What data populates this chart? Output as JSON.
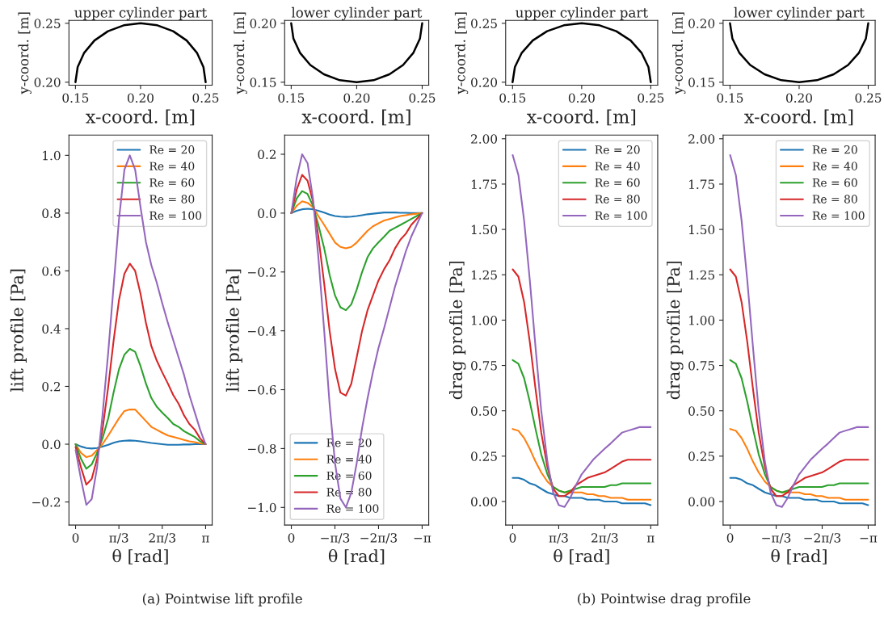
{
  "chart_data": [
    {
      "type": "line",
      "title": "upper cylinder part",
      "xlabel": "x-coord. [m]",
      "ylabel": "y-coord. [m]",
      "xlim": [
        0.145,
        0.255
      ],
      "ylim": [
        0.1975,
        0.2525
      ],
      "xticks": [
        0.15,
        {
          "value": 0.2,
          "label": "0.20"
        },
        0.25
      ],
      "yticks": [
        {
          "value": 0.2,
          "label": "0.20"
        },
        0.25
      ],
      "series": [
        {
          "color": "#000000",
          "x": [
            0.25,
            0.2483,
            0.2433,
            0.2354,
            0.225,
            0.2129,
            0.2,
            0.1871,
            0.175,
            0.1646,
            0.1567,
            0.1517,
            0.15
          ],
          "values": [
            0.2,
            0.2129,
            0.225,
            0.2354,
            0.2433,
            0.2483,
            0.25,
            0.2483,
            0.2433,
            0.2354,
            0.225,
            0.2129,
            0.2
          ]
        }
      ]
    },
    {
      "type": "line",
      "title": "lower cylinder part",
      "xlabel": "x-coord. [m]",
      "ylabel": "y-coord. [m]",
      "xlim": [
        0.145,
        0.255
      ],
      "ylim": [
        0.1475,
        0.2025
      ],
      "xticks": [
        0.15,
        {
          "value": 0.2,
          "label": "0.20"
        },
        0.25
      ],
      "yticks": [
        0.15,
        {
          "value": 0.2,
          "label": "0.20"
        }
      ],
      "series": [
        {
          "color": "#000000",
          "x": [
            0.25,
            0.2483,
            0.2433,
            0.2354,
            0.225,
            0.2129,
            0.2,
            0.1871,
            0.175,
            0.1646,
            0.1567,
            0.1517,
            0.15
          ],
          "values": [
            0.2,
            0.1871,
            0.175,
            0.1646,
            0.1567,
            0.1517,
            0.15,
            0.1517,
            0.1567,
            0.1646,
            0.175,
            0.1871,
            0.2
          ]
        }
      ]
    },
    {
      "type": "line",
      "title": "upper cylinder part",
      "xlabel": "x-coord. [m]",
      "ylabel": "y-coord. [m]",
      "xlim": [
        0.145,
        0.255
      ],
      "ylim": [
        0.1975,
        0.2525
      ],
      "xticks": [
        0.15,
        {
          "value": 0.2,
          "label": "0.20"
        },
        0.25
      ],
      "yticks": [
        {
          "value": 0.2,
          "label": "0.20"
        },
        0.25
      ],
      "series": [
        {
          "color": "#000000",
          "x": [
            0.25,
            0.2483,
            0.2433,
            0.2354,
            0.225,
            0.2129,
            0.2,
            0.1871,
            0.175,
            0.1646,
            0.1567,
            0.1517,
            0.15
          ],
          "values": [
            0.2,
            0.2129,
            0.225,
            0.2354,
            0.2433,
            0.2483,
            0.25,
            0.2483,
            0.2433,
            0.2354,
            0.225,
            0.2129,
            0.2
          ]
        }
      ]
    },
    {
      "type": "line",
      "title": "lower cylinder part",
      "xlabel": "x-coord. [m]",
      "ylabel": "y-coord. [m]",
      "xlim": [
        0.145,
        0.255
      ],
      "ylim": [
        0.1475,
        0.2025
      ],
      "xticks": [
        0.15,
        {
          "value": 0.2,
          "label": "0.20"
        },
        0.25
      ],
      "yticks": [
        0.15,
        {
          "value": 0.2,
          "label": "0.20"
        }
      ],
      "series": [
        {
          "color": "#000000",
          "x": [
            0.25,
            0.2483,
            0.2433,
            0.2354,
            0.225,
            0.2129,
            0.2,
            0.1871,
            0.175,
            0.1646,
            0.1567,
            0.1517,
            0.15
          ],
          "values": [
            0.2,
            0.1871,
            0.175,
            0.1646,
            0.1567,
            0.1517,
            0.15,
            0.1517,
            0.1567,
            0.1646,
            0.175,
            0.1871,
            0.2
          ]
        }
      ]
    },
    {
      "type": "line",
      "xlabel": "θ [rad]",
      "ylabel": "lift profile [Pa]",
      "legend": "top right",
      "annotations": [
        "(a) Pointwise lift profile"
      ],
      "xlim": [
        -0.16,
        3.3
      ],
      "ylim": [
        -0.28,
        1.07
      ],
      "xticks": [
        0,
        {
          "value": 1.0472,
          "label": "π/3"
        },
        {
          "value": 2.0944,
          "label": "2π/3"
        },
        {
          "value": 3.1416,
          "label": "π"
        }
      ],
      "yticks": [
        {
          "value": -0.2,
          "label": "−0.2"
        },
        {
          "value": 0,
          "label": "0.0"
        },
        0.2,
        0.4,
        0.6,
        0.8,
        {
          "value": 1,
          "label": "1.0"
        }
      ],
      "x": [
        0,
        0.13,
        0.26,
        0.39,
        0.52,
        0.65,
        0.79,
        0.92,
        1.05,
        1.18,
        1.31,
        1.44,
        1.57,
        1.7,
        1.83,
        1.96,
        2.09,
        2.23,
        2.36,
        2.49,
        2.62,
        2.75,
        2.88,
        3.01,
        3.14
      ],
      "series": [
        {
          "name": "Re = 20",
          "color": "#1f77b4",
          "values": [
            0,
            -0.008,
            -0.013,
            -0.015,
            -0.013,
            -0.008,
            -0.002,
            0.005,
            0.01,
            0.012,
            0.013,
            0.012,
            0.01,
            0.007,
            0.004,
            0.002,
            0,
            -0.002,
            -0.002,
            -0.002,
            -0.001,
            -0.001,
            0,
            0,
            0
          ]
        },
        {
          "name": "Re = 40",
          "color": "#ff7f0e",
          "values": [
            0,
            -0.03,
            -0.045,
            -0.04,
            -0.02,
            0,
            0.03,
            0.06,
            0.09,
            0.115,
            0.12,
            0.12,
            0.1,
            0.08,
            0.06,
            0.05,
            0.04,
            0.03,
            0.025,
            0.02,
            0.015,
            0.01,
            0.007,
            0.003,
            0
          ]
        },
        {
          "name": "Re = 60",
          "color": "#2ca02c",
          "values": [
            0,
            -0.05,
            -0.085,
            -0.07,
            -0.03,
            0.02,
            0.09,
            0.18,
            0.26,
            0.31,
            0.33,
            0.32,
            0.27,
            0.21,
            0.16,
            0.13,
            0.11,
            0.09,
            0.07,
            0.06,
            0.045,
            0.035,
            0.025,
            0.01,
            0
          ]
        },
        {
          "name": "Re = 80",
          "color": "#d62728",
          "values": [
            -0.01,
            -0.08,
            -0.14,
            -0.12,
            -0.05,
            0.05,
            0.2,
            0.36,
            0.5,
            0.59,
            0.625,
            0.6,
            0.52,
            0.42,
            0.34,
            0.29,
            0.25,
            0.21,
            0.17,
            0.14,
            0.1,
            0.07,
            0.05,
            0.02,
            0
          ]
        },
        {
          "name": "Re = 100",
          "color": "#9467bd",
          "values": [
            -0.02,
            -0.12,
            -0.21,
            -0.19,
            -0.08,
            0.1,
            0.32,
            0.55,
            0.78,
            0.95,
            1.0,
            0.95,
            0.82,
            0.7,
            0.62,
            0.56,
            0.49,
            0.42,
            0.36,
            0.3,
            0.24,
            0.17,
            0.11,
            0.05,
            0
          ]
        }
      ]
    },
    {
      "type": "line",
      "xlabel": "θ [rad]",
      "ylabel": "lift profile [Pa]",
      "legend": "bottom left",
      "xlim": [
        0.16,
        -3.3
      ],
      "ylim": [
        -1.06,
        0.265
      ],
      "xticks": [
        0,
        {
          "value": -1.0472,
          "label": "−π/3"
        },
        {
          "value": -2.0944,
          "label": "−2π/3"
        },
        {
          "value": -3.1416,
          "label": "−π"
        }
      ],
      "yticks": [
        {
          "value": -1.0,
          "label": "−1.0"
        },
        {
          "value": -0.8,
          "label": "−0.8"
        },
        {
          "value": -0.6,
          "label": "−0.6"
        },
        {
          "value": -0.4,
          "label": "−0.4"
        },
        {
          "value": -0.2,
          "label": "−0.2"
        },
        {
          "value": 0,
          "label": "0.0"
        },
        0.2
      ],
      "x": [
        0,
        -0.13,
        -0.26,
        -0.39,
        -0.52,
        -0.65,
        -0.79,
        -0.92,
        -1.05,
        -1.18,
        -1.31,
        -1.44,
        -1.57,
        -1.7,
        -1.83,
        -1.96,
        -2.09,
        -2.23,
        -2.36,
        -2.49,
        -2.62,
        -2.75,
        -2.88,
        -3.01,
        -3.14
      ],
      "series": [
        {
          "name": "Re = 20",
          "color": "#1f77b4",
          "values": [
            0,
            0.008,
            0.013,
            0.015,
            0.013,
            0.008,
            0.002,
            -0.005,
            -0.01,
            -0.012,
            -0.013,
            -0.012,
            -0.01,
            -0.007,
            -0.004,
            -0.002,
            0,
            0.002,
            0.002,
            0.002,
            0.001,
            0.001,
            0,
            0,
            0
          ]
        },
        {
          "name": "Re = 40",
          "color": "#ff7f0e",
          "values": [
            0,
            0.025,
            0.04,
            0.035,
            0.02,
            -0.01,
            -0.04,
            -0.07,
            -0.1,
            -0.115,
            -0.12,
            -0.115,
            -0.1,
            -0.08,
            -0.06,
            -0.045,
            -0.035,
            -0.025,
            -0.02,
            -0.015,
            -0.01,
            -0.007,
            -0.004,
            -0.002,
            0
          ]
        },
        {
          "name": "Re = 60",
          "color": "#2ca02c",
          "values": [
            0,
            0.05,
            0.075,
            0.065,
            0.025,
            -0.04,
            -0.12,
            -0.21,
            -0.28,
            -0.32,
            -0.33,
            -0.31,
            -0.26,
            -0.2,
            -0.15,
            -0.12,
            -0.1,
            -0.08,
            -0.06,
            -0.05,
            -0.04,
            -0.03,
            -0.02,
            -0.01,
            0
          ]
        },
        {
          "name": "Re = 80",
          "color": "#d62728",
          "values": [
            0,
            0.08,
            0.13,
            0.11,
            0.04,
            -0.08,
            -0.24,
            -0.4,
            -0.53,
            -0.61,
            -0.62,
            -0.58,
            -0.49,
            -0.4,
            -0.33,
            -0.28,
            -0.23,
            -0.19,
            -0.16,
            -0.12,
            -0.09,
            -0.07,
            -0.04,
            -0.02,
            0
          ]
        },
        {
          "name": "Re = 100",
          "color": "#9467bd",
          "values": [
            0,
            0.12,
            0.2,
            0.17,
            0.05,
            -0.15,
            -0.4,
            -0.65,
            -0.85,
            -0.97,
            -1.0,
            -0.95,
            -0.85,
            -0.73,
            -0.63,
            -0.54,
            -0.46,
            -0.39,
            -0.32,
            -0.25,
            -0.19,
            -0.13,
            -0.08,
            -0.04,
            0
          ]
        }
      ]
    },
    {
      "type": "line",
      "xlabel": "θ [rad]",
      "ylabel": "drag profile [Pa]",
      "legend": "top right",
      "annotations": [
        "(b) Pointwise drag profile"
      ],
      "xlim": [
        -0.16,
        3.3
      ],
      "ylim": [
        -0.13,
        2.02
      ],
      "xticks": [
        0,
        {
          "value": 1.0472,
          "label": "π/3"
        },
        {
          "value": 2.0944,
          "label": "2π/3"
        },
        {
          "value": 3.1416,
          "label": "π"
        }
      ],
      "yticks": [
        {
          "value": 0,
          "label": "0.00"
        },
        0.25,
        {
          "value": 0.5,
          "label": "0.50"
        },
        0.75,
        {
          "value": 1.0,
          "label": "1.00"
        },
        1.25,
        {
          "value": 1.5,
          "label": "1.50"
        },
        1.75,
        {
          "value": 2.0,
          "label": "2.00"
        }
      ],
      "x": [
        0,
        0.13,
        0.26,
        0.39,
        0.52,
        0.65,
        0.79,
        0.92,
        1.05,
        1.18,
        1.31,
        1.44,
        1.57,
        1.7,
        1.83,
        1.96,
        2.09,
        2.23,
        2.36,
        2.49,
        2.62,
        2.75,
        2.88,
        3.01,
        3.14
      ],
      "series": [
        {
          "name": "Re = 20",
          "color": "#1f77b4",
          "values": [
            0.13,
            0.13,
            0.12,
            0.1,
            0.09,
            0.07,
            0.05,
            0.04,
            0.03,
            0.03,
            0.02,
            0.02,
            0.02,
            0.01,
            0.01,
            0.01,
            0.0,
            0.0,
            0.0,
            -0.01,
            -0.01,
            -0.01,
            -0.01,
            -0.01,
            -0.02
          ]
        },
        {
          "name": "Re = 40",
          "color": "#ff7f0e",
          "values": [
            0.4,
            0.39,
            0.35,
            0.29,
            0.22,
            0.16,
            0.11,
            0.08,
            0.06,
            0.05,
            0.05,
            0.05,
            0.05,
            0.04,
            0.04,
            0.03,
            0.03,
            0.02,
            0.02,
            0.02,
            0.01,
            0.01,
            0.01,
            0.01,
            0.01
          ]
        },
        {
          "name": "Re = 60",
          "color": "#2ca02c",
          "values": [
            0.78,
            0.76,
            0.68,
            0.55,
            0.4,
            0.26,
            0.15,
            0.08,
            0.06,
            0.05,
            0.06,
            0.07,
            0.08,
            0.08,
            0.08,
            0.08,
            0.08,
            0.09,
            0.09,
            0.1,
            0.1,
            0.1,
            0.1,
            0.1,
            0.1
          ]
        },
        {
          "name": "Re = 80",
          "color": "#d62728",
          "values": [
            1.28,
            1.24,
            1.1,
            0.88,
            0.62,
            0.38,
            0.19,
            0.07,
            0.03,
            0.03,
            0.05,
            0.09,
            0.11,
            0.13,
            0.14,
            0.15,
            0.16,
            0.18,
            0.2,
            0.22,
            0.23,
            0.23,
            0.23,
            0.23,
            0.23
          ]
        },
        {
          "name": "Re = 100",
          "color": "#9467bd",
          "values": [
            1.91,
            1.8,
            1.55,
            1.22,
            0.85,
            0.5,
            0.22,
            0.05,
            -0.02,
            -0.03,
            0.02,
            0.09,
            0.15,
            0.19,
            0.23,
            0.26,
            0.29,
            0.32,
            0.35,
            0.38,
            0.39,
            0.4,
            0.41,
            0.41,
            0.41
          ]
        }
      ]
    },
    {
      "type": "line",
      "xlabel": "θ [rad]",
      "ylabel": "drag profile [Pa]",
      "legend": "top right",
      "xlim": [
        0.16,
        -3.3
      ],
      "ylim": [
        -0.13,
        2.02
      ],
      "xticks": [
        0,
        {
          "value": -1.0472,
          "label": "−π/3"
        },
        {
          "value": -2.0944,
          "label": "−2π/3"
        },
        {
          "value": -3.1416,
          "label": "−π"
        }
      ],
      "yticks": [
        {
          "value": 0,
          "label": "0.00"
        },
        0.25,
        {
          "value": 0.5,
          "label": "0.50"
        },
        0.75,
        {
          "value": 1.0,
          "label": "1.00"
        },
        1.25,
        {
          "value": 1.5,
          "label": "1.50"
        },
        1.75,
        {
          "value": 2.0,
          "label": "2.00"
        }
      ],
      "x": [
        0,
        -0.13,
        -0.26,
        -0.39,
        -0.52,
        -0.65,
        -0.79,
        -0.92,
        -1.05,
        -1.18,
        -1.31,
        -1.44,
        -1.57,
        -1.7,
        -1.83,
        -1.96,
        -2.09,
        -2.23,
        -2.36,
        -2.49,
        -2.62,
        -2.75,
        -2.88,
        -3.01,
        -3.14
      ],
      "series": [
        {
          "name": "Re = 20",
          "color": "#1f77b4",
          "values": [
            0.13,
            0.13,
            0.12,
            0.1,
            0.09,
            0.07,
            0.05,
            0.04,
            0.03,
            0.03,
            0.02,
            0.02,
            0.02,
            0.01,
            0.01,
            0.01,
            0.0,
            0.0,
            0.0,
            -0.01,
            -0.01,
            -0.01,
            -0.01,
            -0.01,
            -0.02
          ]
        },
        {
          "name": "Re = 40",
          "color": "#ff7f0e",
          "values": [
            0.4,
            0.39,
            0.35,
            0.29,
            0.22,
            0.16,
            0.11,
            0.08,
            0.06,
            0.05,
            0.05,
            0.05,
            0.05,
            0.04,
            0.04,
            0.03,
            0.03,
            0.02,
            0.02,
            0.02,
            0.01,
            0.01,
            0.01,
            0.01,
            0.01
          ]
        },
        {
          "name": "Re = 60",
          "color": "#2ca02c",
          "values": [
            0.78,
            0.76,
            0.68,
            0.55,
            0.4,
            0.26,
            0.15,
            0.08,
            0.06,
            0.05,
            0.06,
            0.07,
            0.08,
            0.08,
            0.08,
            0.08,
            0.08,
            0.09,
            0.09,
            0.1,
            0.1,
            0.1,
            0.1,
            0.1,
            0.1
          ]
        },
        {
          "name": "Re = 80",
          "color": "#d62728",
          "values": [
            1.28,
            1.24,
            1.1,
            0.88,
            0.62,
            0.38,
            0.19,
            0.07,
            0.03,
            0.03,
            0.05,
            0.09,
            0.11,
            0.13,
            0.14,
            0.15,
            0.16,
            0.18,
            0.2,
            0.22,
            0.23,
            0.23,
            0.23,
            0.23,
            0.23
          ]
        },
        {
          "name": "Re = 100",
          "color": "#9467bd",
          "values": [
            1.91,
            1.8,
            1.55,
            1.22,
            0.85,
            0.5,
            0.22,
            0.05,
            -0.02,
            -0.03,
            0.02,
            0.09,
            0.15,
            0.19,
            0.23,
            0.26,
            0.29,
            0.32,
            0.35,
            0.38,
            0.39,
            0.4,
            0.41,
            0.41,
            0.41
          ]
        }
      ]
    }
  ]
}
